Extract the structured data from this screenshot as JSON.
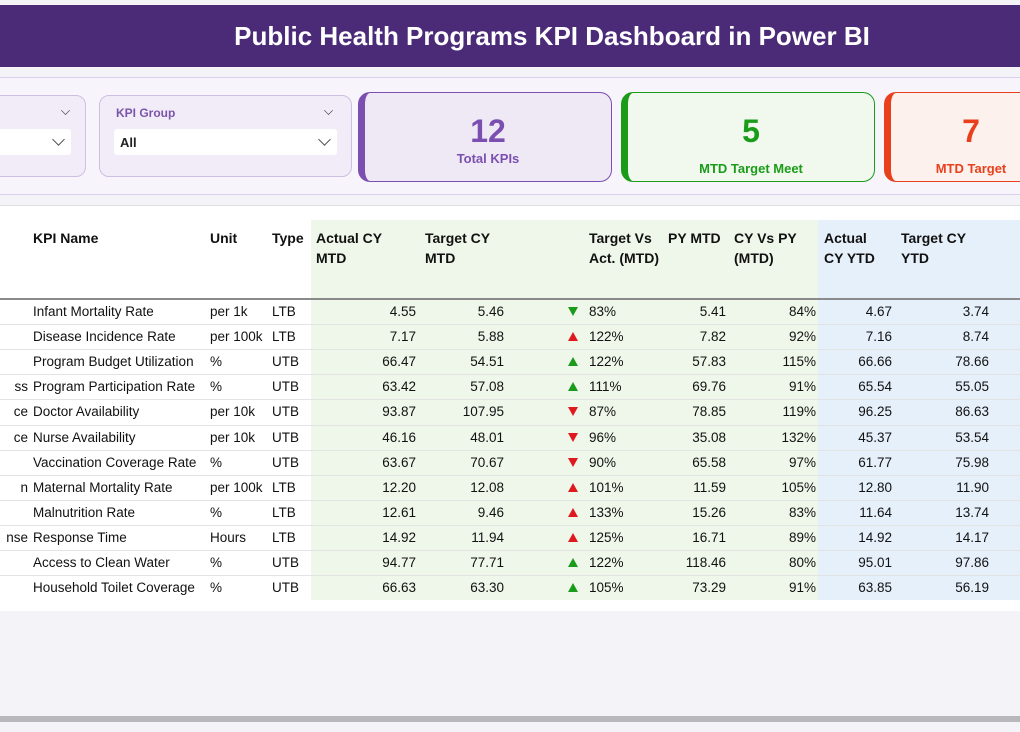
{
  "header": {
    "title": "Public Health Programs KPI Dashboard in Power BI"
  },
  "slicers": [
    {
      "label": null,
      "value": null
    },
    {
      "label": "KPI Group",
      "value": "All"
    }
  ],
  "cards": [
    {
      "value": "12",
      "caption": "Total KPIs",
      "color": "#7b4fb0"
    },
    {
      "value": "5",
      "caption": "MTD Target Meet",
      "color": "#1a9c1a"
    },
    {
      "value": "7",
      "caption": "MTD Target",
      "color": "#e8401c"
    }
  ],
  "table": {
    "columns": [
      null,
      "KPI Name",
      "Unit",
      "Type",
      "Actual CY MTD",
      "Target CY MTD",
      "Target Vs Act. (MTD)",
      "PY MTD",
      "CY Vs PY (MTD)",
      "Actual CY YTD",
      "Target CY YTD"
    ],
    "rows": [
      [
        null,
        "Infant Mortality Rate",
        "per 1k",
        "LTB",
        "4.55",
        "5.46",
        "83%",
        "5.41",
        "84%",
        "4.67",
        "3.74"
      ],
      [
        null,
        "Disease Incidence Rate",
        "per 100k",
        "LTB",
        "7.17",
        "5.88",
        "122%",
        "7.82",
        "92%",
        "7.16",
        "8.74"
      ],
      [
        null,
        "Program Budget Utilization",
        "%",
        "UTB",
        "66.47",
        "54.51",
        "122%",
        "57.83",
        "115%",
        "66.66",
        "78.66"
      ],
      [
        "ss",
        "Program Participation Rate",
        "%",
        "UTB",
        "63.42",
        "57.08",
        "111%",
        "69.76",
        "91%",
        "65.54",
        "55.05"
      ],
      [
        "ce",
        "Doctor Availability",
        "per 10k",
        "UTB",
        "93.87",
        "107.95",
        "87%",
        "78.85",
        "119%",
        "96.25",
        "86.63"
      ],
      [
        "ce",
        "Nurse Availability",
        "per 10k",
        "UTB",
        "46.16",
        "48.01",
        "96%",
        "35.08",
        "132%",
        "45.37",
        "53.54"
      ],
      [
        null,
        "Vaccination Coverage Rate",
        "%",
        "UTB",
        "63.67",
        "70.67",
        "90%",
        "65.58",
        "97%",
        "61.77",
        "75.98"
      ],
      [
        "n",
        "Maternal Mortality Rate",
        "per 100k",
        "LTB",
        "12.20",
        "12.08",
        "101%",
        "11.59",
        "105%",
        "12.80",
        "11.90"
      ],
      [
        null,
        "Malnutrition Rate",
        "%",
        "LTB",
        "12.61",
        "9.46",
        "133%",
        "15.26",
        "83%",
        "11.64",
        "13.74"
      ],
      [
        "nse",
        "Response Time",
        "Hours",
        "LTB",
        "14.92",
        "11.94",
        "125%",
        "16.71",
        "89%",
        "14.92",
        "14.17"
      ],
      [
        null,
        "Access to Clean Water",
        "%",
        "UTB",
        "94.77",
        "77.71",
        "122%",
        "118.46",
        "80%",
        "95.01",
        "97.86"
      ],
      [
        null,
        "Household Toilet Coverage",
        "%",
        "UTB",
        "66.63",
        "63.30",
        "105%",
        "73.29",
        "91%",
        "63.85",
        "56.19"
      ]
    ],
    "indicators": [
      {
        "shape": "down",
        "color": "#1a9c1a"
      },
      {
        "shape": "up",
        "color": "#e0191e"
      },
      {
        "shape": "up",
        "color": "#1a9c1a"
      },
      {
        "shape": "up",
        "color": "#1a9c1a"
      },
      {
        "shape": "down",
        "color": "#e0191e"
      },
      {
        "shape": "down",
        "color": "#e0191e"
      },
      {
        "shape": "down",
        "color": "#e0191e"
      },
      {
        "shape": "up",
        "color": "#e0191e"
      },
      {
        "shape": "up",
        "color": "#e0191e"
      },
      {
        "shape": "up",
        "color": "#e0191e"
      },
      {
        "shape": "up",
        "color": "#1a9c1a"
      },
      {
        "shape": "up",
        "color": "#1a9c1a"
      }
    ]
  }
}
